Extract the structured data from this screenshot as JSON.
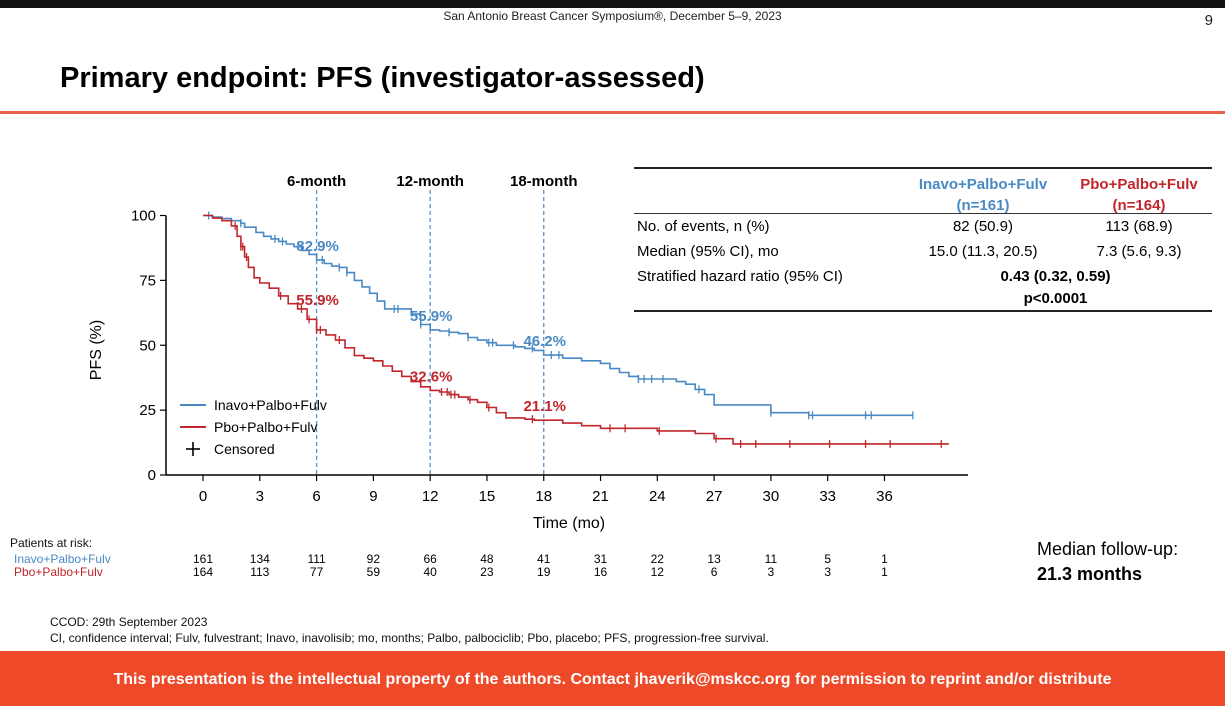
{
  "header": {
    "conference": "San Antonio Breast Cancer Symposium®, December 5–9, 2023",
    "page_number": "9",
    "title": "Primary endpoint: PFS (investigator-assessed)"
  },
  "stats_table": {
    "col1_header_line1": "Inavo+Palbo+Fulv",
    "col1_header_line2": "(n=161)",
    "col2_header_line1": "Pbo+Palbo+Fulv",
    "col2_header_line2": "(n=164)",
    "rows": [
      {
        "label": "No. of events, n (%)",
        "v1": "82 (50.9)",
        "v2": "113 (68.9)"
      },
      {
        "label": "Median (95% CI), mo",
        "v1": "15.0 (11.3, 20.5)",
        "v2": "7.3 (5.6, 9.3)"
      }
    ],
    "hr_label": "Stratified hazard ratio (95% CI)",
    "hr_value": "0.43 (0.32, 0.59)",
    "p_value": "p<0.0001"
  },
  "risk_table": {
    "header": "Patients at risk:",
    "rows": [
      {
        "label": "Inavo+Palbo+Fulv",
        "color": "#4a8ac4",
        "values": [
          "161",
          "134",
          "111",
          "92",
          "66",
          "48",
          "41",
          "31",
          "22",
          "13",
          "11",
          "5",
          "1"
        ]
      },
      {
        "label": "Pbo+Palbo+Fulv",
        "color": "#c0262c",
        "values": [
          "164",
          "113",
          "77",
          "59",
          "40",
          "23",
          "19",
          "16",
          "12",
          "6",
          "3",
          "3",
          "1"
        ]
      }
    ]
  },
  "followup": {
    "line1": "Median follow-up:",
    "line2": "21.3 months"
  },
  "notes": {
    "line1": "CCOD: 29th September 2023",
    "line2": "CI, confidence interval; Fulv, fulvestrant; Inavo, inavolisib; mo, months; Palbo, palbociclib; Pbo, placebo; PFS, progression-free survival."
  },
  "footer": "This presentation is the intellectual property of the authors. Contact jhaverik@mskcc.org for permission to reprint and/or distribute",
  "chart_data": {
    "type": "line",
    "title": "",
    "xlabel": "Time (mo)",
    "ylabel": "PFS (%)",
    "xlim": [
      0,
      41
    ],
    "ylim": [
      0,
      100
    ],
    "x_ticks": [
      "0",
      "3",
      "6",
      "9",
      "12",
      "15",
      "18",
      "21",
      "24",
      "27",
      "30",
      "33",
      "36"
    ],
    "y_ticks": [
      "0",
      "25",
      "50",
      "75",
      "100"
    ],
    "grid": false,
    "legend_position": "bottom-left",
    "censored_label": "Censored",
    "landmarks": [
      {
        "x": 6,
        "label": "6-month"
      },
      {
        "x": 12,
        "label": "12-month"
      },
      {
        "x": 18,
        "label": "18-month"
      }
    ],
    "series": [
      {
        "name": "Inavo+Palbo+Fulv",
        "color": "#4a8ac4",
        "annotations": [
          {
            "x": 6,
            "y": 82.9,
            "label": "82.9%"
          },
          {
            "x": 12,
            "y": 55.9,
            "label": "55.9%"
          },
          {
            "x": 18,
            "y": 46.2,
            "label": "46.2%"
          }
        ],
        "x": [
          0,
          0.5,
          1,
          1.5,
          2,
          2.2,
          2.8,
          3.2,
          3.6,
          4,
          4.4,
          4.8,
          5.2,
          5.6,
          6,
          6.4,
          6.8,
          7.2,
          7.6,
          8,
          8.4,
          8.8,
          9.2,
          9.6,
          10,
          10.5,
          11,
          11.5,
          12,
          12.5,
          13,
          13.5,
          14,
          14.5,
          15,
          15.5,
          16,
          16.5,
          17,
          17.5,
          18,
          18.5,
          19,
          20,
          21,
          21.5,
          22,
          22.5,
          23,
          24,
          25,
          25.5,
          26,
          26.5,
          27,
          28,
          29,
          30,
          32,
          34,
          36,
          37.5
        ],
        "y": [
          100,
          99.4,
          98.8,
          98,
          97,
          95.5,
          93.5,
          92,
          91,
          90,
          89,
          88,
          86.5,
          85,
          82.9,
          81.5,
          80.5,
          80,
          78,
          75,
          72.5,
          70,
          67,
          64,
          64,
          64,
          62,
          58,
          55.9,
          55.5,
          55,
          54.5,
          53,
          52,
          51,
          50,
          50,
          49.4,
          48.8,
          48,
          46.2,
          46.2,
          45,
          44,
          43,
          41,
          39.5,
          38,
          37,
          37,
          36,
          35,
          33,
          31,
          27,
          27,
          27,
          24,
          23,
          23,
          23,
          23
        ],
        "censored_x": [
          0.3,
          2,
          3.8,
          4.2,
          6.3,
          7.2,
          7.6,
          10.1,
          10.3,
          11.5,
          13,
          14,
          15.1,
          15.3,
          16.4,
          17.4,
          18.4,
          18.8,
          23,
          23.3,
          23.7,
          24.3,
          26.2,
          30,
          32,
          32.2,
          35,
          35.3,
          37.5
        ]
      },
      {
        "name": "Pbo+Palbo+Fulv",
        "color": "#c0262c",
        "annotations": [
          {
            "x": 6,
            "y": 55.9,
            "label": "55.9%"
          },
          {
            "x": 12,
            "y": 32.6,
            "label": "32.6%"
          },
          {
            "x": 18,
            "y": 21.1,
            "label": "21.1%"
          }
        ],
        "x": [
          0,
          0.5,
          1,
          1.5,
          1.8,
          2,
          2.2,
          2.4,
          2.7,
          3,
          3.5,
          4,
          4.5,
          5,
          5.5,
          6,
          6.5,
          7,
          7.5,
          8,
          8.5,
          9,
          9.5,
          10,
          10.5,
          11,
          11.5,
          12,
          12.5,
          13,
          13.5,
          14,
          14.5,
          15,
          15.5,
          16,
          16.5,
          17,
          17.5,
          18,
          19,
          20,
          21,
          22,
          24,
          26,
          27,
          28,
          30,
          33,
          35,
          38,
          39
        ],
        "y": [
          100,
          99,
          98,
          96,
          92,
          88,
          84,
          80,
          76,
          74,
          72,
          69,
          66,
          64,
          60,
          55.9,
          54,
          52,
          49,
          46,
          45,
          44,
          42,
          40,
          38,
          36,
          34,
          32.6,
          32,
          31,
          30,
          29,
          28,
          26,
          24,
          22,
          22,
          21.5,
          21.1,
          21.1,
          20,
          19,
          18,
          18,
          17,
          16,
          14,
          12,
          12,
          12,
          12,
          12,
          12
        ],
        "censored_x": [
          1.7,
          2,
          2.1,
          2.3,
          4.1,
          5.2,
          5.6,
          6,
          6.2,
          7.2,
          12.6,
          12.9,
          13.1,
          13.3,
          14.1,
          15.1,
          17.4,
          21.5,
          22.3,
          24.1,
          27.1,
          28.4,
          29.2,
          31,
          33.1,
          35,
          36.3,
          39
        ]
      }
    ]
  }
}
